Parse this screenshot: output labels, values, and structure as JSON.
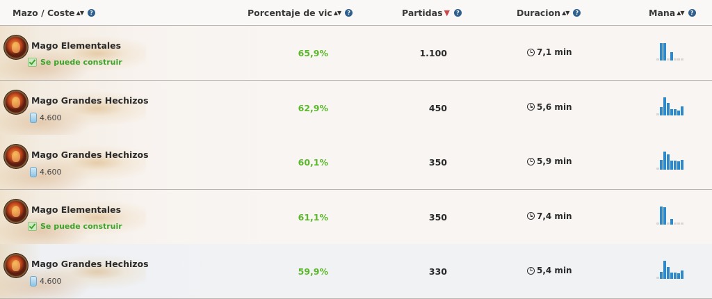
{
  "header": {
    "deck_cost": "Mazo / Coste",
    "winrate": "Porcentaje de vic",
    "games": "Partidas",
    "duration": "Duracion",
    "mana": "Mana",
    "sort_icon": "sort-both-icon",
    "sort_active_icon": "sort-desc-icon",
    "help_icon": "help-icon"
  },
  "colors": {
    "win": "#5cb82b",
    "buildable": "#3aa52a",
    "mana_bar": "#2f88c7",
    "sort_active": "#c8474b"
  },
  "rows": [
    {
      "name": "Mago Elementales",
      "sub_type": "buildable",
      "sub": "Se puede construir",
      "winrate": "65,9%",
      "games": "1.100",
      "duration": "7,1 min",
      "mana": [
        0.08,
        0.95,
        0.95,
        0.08,
        0.45,
        0.08,
        0.08,
        0.08
      ]
    },
    {
      "name": "Mago Grandes Hechizos",
      "sub_type": "cost",
      "sub": "4.600",
      "winrate": "62,9%",
      "games": "450",
      "duration": "5,6 min",
      "mana": [
        0.08,
        0.45,
        1.0,
        0.7,
        0.35,
        0.35,
        0.25,
        0.5
      ]
    },
    {
      "name": "Mago Grandes Hechizos",
      "sub_type": "cost",
      "sub": "4.600",
      "winrate": "60,1%",
      "games": "350",
      "duration": "5,9 min",
      "mana": [
        0.08,
        0.55,
        1.0,
        0.85,
        0.5,
        0.5,
        0.45,
        0.55
      ]
    },
    {
      "name": "Mago Elementales",
      "sub_type": "buildable",
      "sub": "Se puede construir",
      "winrate": "61,1%",
      "games": "350",
      "duration": "7,4 min",
      "mana": [
        0.08,
        1.0,
        0.95,
        0.08,
        0.3,
        0.08,
        0.08,
        0.08
      ]
    },
    {
      "name": "Mago Grandes Hechizos",
      "sub_type": "cost",
      "sub": "4.600",
      "winrate": "59,9%",
      "games": "330",
      "duration": "5,4 min",
      "mana": [
        0.08,
        0.4,
        1.0,
        0.65,
        0.35,
        0.35,
        0.3,
        0.45
      ]
    }
  ]
}
